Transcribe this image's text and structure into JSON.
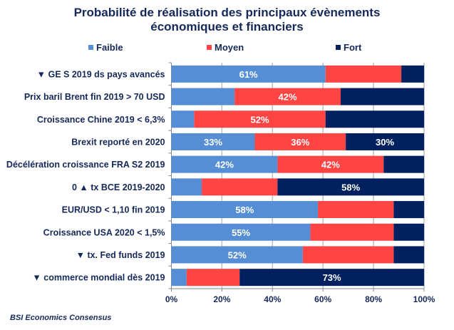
{
  "chart_data": {
    "type": "bar",
    "orientation": "horizontal",
    "stacked": "percent",
    "title": [
      "Probabilité de réalisation des principaux évènements",
      "économiques et financiers"
    ],
    "categories": [
      "▼ GE S 2019 ds pays avancés",
      "Prix baril Brent fin 2019 > 70 USD",
      "Croissance Chine 2019 < 6,3%",
      "Brexit  reporté en 2020",
      "Décélération croissance FRA  S2 2019",
      "0 ▲ tx BCE  2019-2020",
      "EUR/USD < 1,10 fin 2019",
      "Croissance USA 2020 < 1,5%",
      "▼ tx. Fed funds 2019",
      "▼ commerce mondial dès 2019"
    ],
    "series": [
      {
        "name": "Faible",
        "color": "#558ed5",
        "values": [
          61,
          25,
          9,
          33,
          42,
          12,
          58,
          55,
          52,
          6
        ],
        "labels": [
          "61%",
          "",
          "",
          "33%",
          "42%",
          "",
          "58%",
          "55%",
          "52%",
          ""
        ]
      },
      {
        "name": "Moyen",
        "color": "#ff4444",
        "values": [
          30,
          42,
          52,
          36,
          42,
          30,
          30,
          33,
          36,
          21
        ],
        "labels": [
          "",
          "42%",
          "52%",
          "36%",
          "42%",
          "",
          "",
          "",
          "",
          ""
        ]
      },
      {
        "name": "Fort",
        "color": "#002060",
        "values": [
          9,
          33,
          39,
          30,
          15,
          58,
          12,
          12,
          12,
          73
        ],
        "labels": [
          "",
          "",
          "",
          "30%",
          "",
          "58%",
          "",
          "",
          "",
          "73%"
        ]
      }
    ],
    "xlabel": "",
    "ylabel": "",
    "xlim": [
      0,
      100
    ],
    "xticks": [
      "0%",
      "20%",
      "40%",
      "60%",
      "80%",
      "100%"
    ],
    "grid": "vertical",
    "legend": "top"
  },
  "source": "BSI Economics Consensus"
}
